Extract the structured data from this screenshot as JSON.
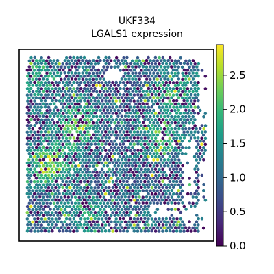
{
  "chart_data": {
    "type": "scatter",
    "title_line1": "UKF334",
    "title_line2": "LGALS1 expression",
    "xlabel": "",
    "ylabel": "",
    "colormap": "viridis",
    "color_range": [
      0.0,
      2.95
    ],
    "colorbar": {
      "ticks": [
        0.0,
        0.5,
        1.0,
        1.5,
        2.0,
        2.5
      ],
      "tick_labels": [
        "0.0",
        "0.5",
        "1.0",
        "1.5",
        "2.0",
        "2.5"
      ]
    },
    "grid": false,
    "legend": "none",
    "hotspots": [
      {
        "x": 0.15,
        "y": 0.6,
        "level": 2.4
      },
      {
        "x": 0.3,
        "y": 0.4,
        "level": 2.2
      },
      {
        "x": 0.72,
        "y": 0.45,
        "level": 2.1
      },
      {
        "x": 0.8,
        "y": 0.22,
        "level": 2.0
      },
      {
        "x": 0.35,
        "y": 0.85,
        "level": 1.8
      },
      {
        "x": 0.1,
        "y": 0.15,
        "level": 1.9
      }
    ],
    "colors": {
      "viridis_stops": [
        "#440154",
        "#482878",
        "#3e4a89",
        "#31688e",
        "#26828e",
        "#1f9e89",
        "#35b779",
        "#6ece58",
        "#b5de2b",
        "#fde725"
      ],
      "axes": "#000000",
      "background": "#ffffff"
    }
  }
}
